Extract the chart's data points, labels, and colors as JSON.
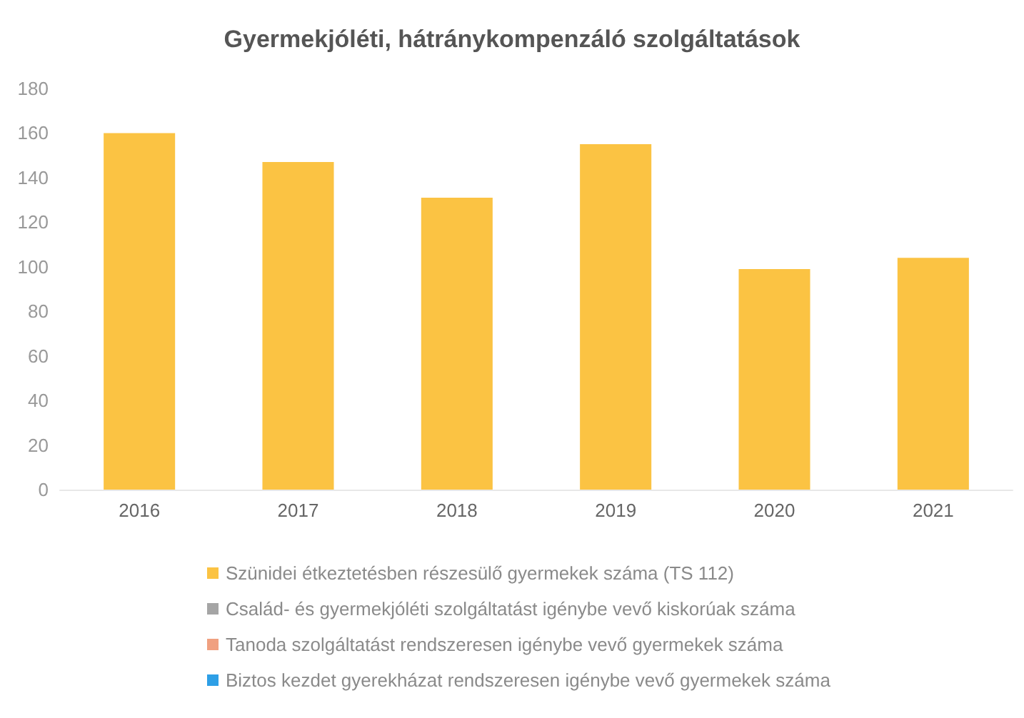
{
  "chart_data": {
    "type": "bar",
    "title": "Gyermekjóléti, hátránykompenzáló szolgáltatások",
    "categories": [
      "2016",
      "2017",
      "2018",
      "2019",
      "2020",
      "2021"
    ],
    "series": [
      {
        "name": "Szünidei étkeztetésben részesülő gyermekek száma (TS 112)",
        "color": "#fbc343",
        "values": [
          160,
          147,
          131,
          155,
          99,
          104
        ]
      },
      {
        "name": "Család- és gyermekjóléti szolgáltatást igénybe vevő kiskorúak száma",
        "color": "#a5a5a5",
        "values": [
          null,
          null,
          null,
          null,
          null,
          null
        ]
      },
      {
        "name": "Tanoda szolgáltatást rendszeresen igénybe vevő gyermekek száma",
        "color": "#f0a080",
        "values": [
          null,
          null,
          null,
          null,
          null,
          null
        ]
      },
      {
        "name": "Biztos kezdet gyerekházat rendszeresen igénybe vevő gyermekek száma",
        "color": "#2e9fe6",
        "values": [
          null,
          null,
          null,
          null,
          null,
          null
        ]
      }
    ],
    "ylim": [
      0,
      180
    ],
    "yticks": [
      0,
      20,
      40,
      60,
      80,
      100,
      120,
      140,
      160,
      180
    ],
    "grid": false,
    "legend": "bottom"
  }
}
